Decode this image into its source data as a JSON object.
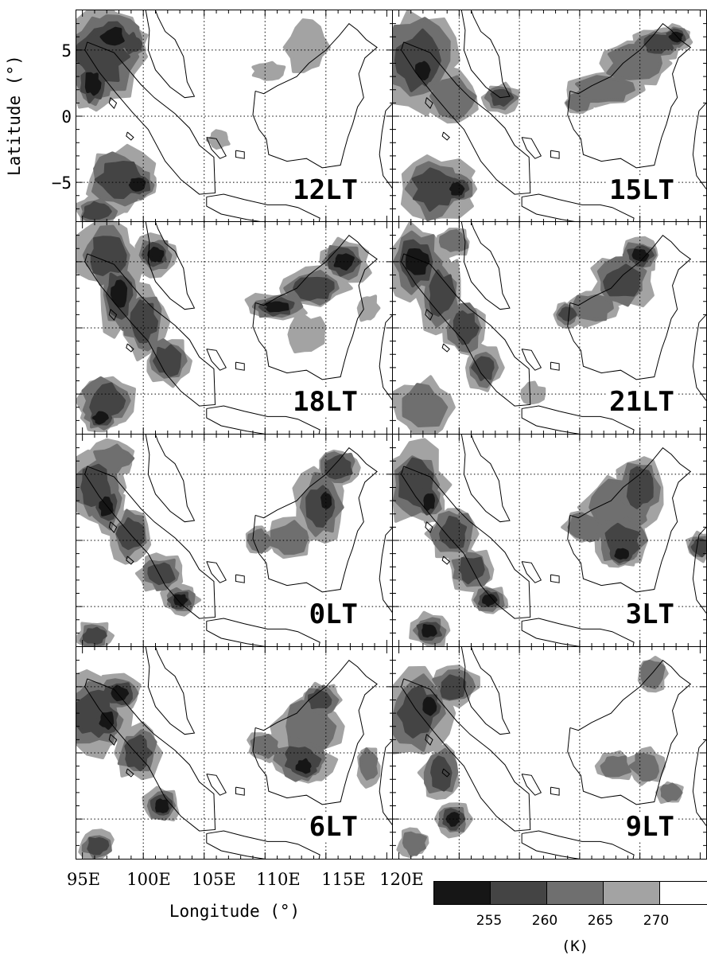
{
  "figure": {
    "panel_labels": [
      "12LT",
      "15LT",
      "18LT",
      "21LT",
      "0LT",
      "3LT",
      "6LT",
      "9LT"
    ],
    "y_axis": {
      "label": "Latitude (°)",
      "ticks": [
        "5",
        "0",
        "−5"
      ]
    },
    "x_axis": {
      "label": "Longitude (°)",
      "ticks": [
        "95E",
        "100E",
        "105E",
        "110E",
        "115E",
        "120E"
      ]
    },
    "colorbar": {
      "ticks": [
        "255",
        "260",
        "265",
        "270"
      ],
      "unit": "(K)",
      "colors": [
        "#161616",
        "#444444",
        "#6f6f6f",
        "#a3a3a3",
        "#ffffff"
      ]
    },
    "shade_colors": [
      "#a3a3a3",
      "#6f6f6f",
      "#444444",
      "#161616"
    ]
  }
}
